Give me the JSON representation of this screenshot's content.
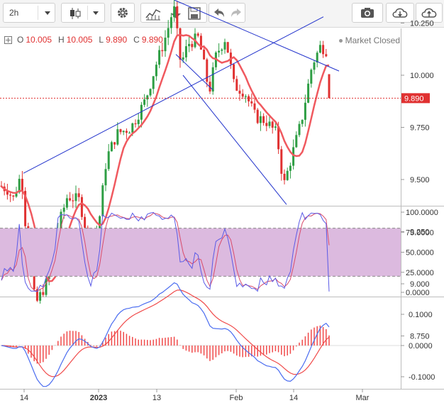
{
  "toolbar": {
    "interval": "2h",
    "icons": [
      "caret-down-icon",
      "candlestick-icon",
      "caret-down-icon",
      "gear-icon",
      "indicators-icon",
      "download-icon",
      "save-icon",
      "undo-icon",
      "redo-icon",
      "camera-icon",
      "cloud-download-icon",
      "cloud-upload-icon"
    ]
  },
  "legend": {
    "open_label": "O",
    "open": "10.005",
    "high_label": "H",
    "high": "10.005",
    "low_label": "L",
    "low": "9.890",
    "close_label": "C",
    "close": "9.890"
  },
  "status": {
    "market": "Market Closed"
  },
  "price_axis": {
    "ticks": [
      "10.250",
      "10.000",
      "9.750",
      "9.500",
      "9.250",
      "9.000",
      "8.750"
    ],
    "last_price": "9.890",
    "last_price_color": "#e03131"
  },
  "stoch_axis": {
    "ticks": [
      "100.0000",
      "75.0000",
      "50.0000",
      "25.0000",
      "0.0000"
    ]
  },
  "macd_axis": {
    "ticks": [
      "0.1000",
      "0.0000",
      "-0.1000"
    ]
  },
  "time_axis": {
    "labels": [
      "14",
      "2023",
      "13",
      "Feb",
      "14",
      "Mar"
    ]
  },
  "colors": {
    "up": "#2e9e44",
    "down": "#e03131",
    "ma": "#f0595f",
    "trend": "#2233cc",
    "stoch_fill": "#dcbadf",
    "stoch_k": "#5a5ae6",
    "stoch_d": "#d94b6b",
    "macd": "#4a6cf0",
    "signal": "#f04a4a"
  }
}
